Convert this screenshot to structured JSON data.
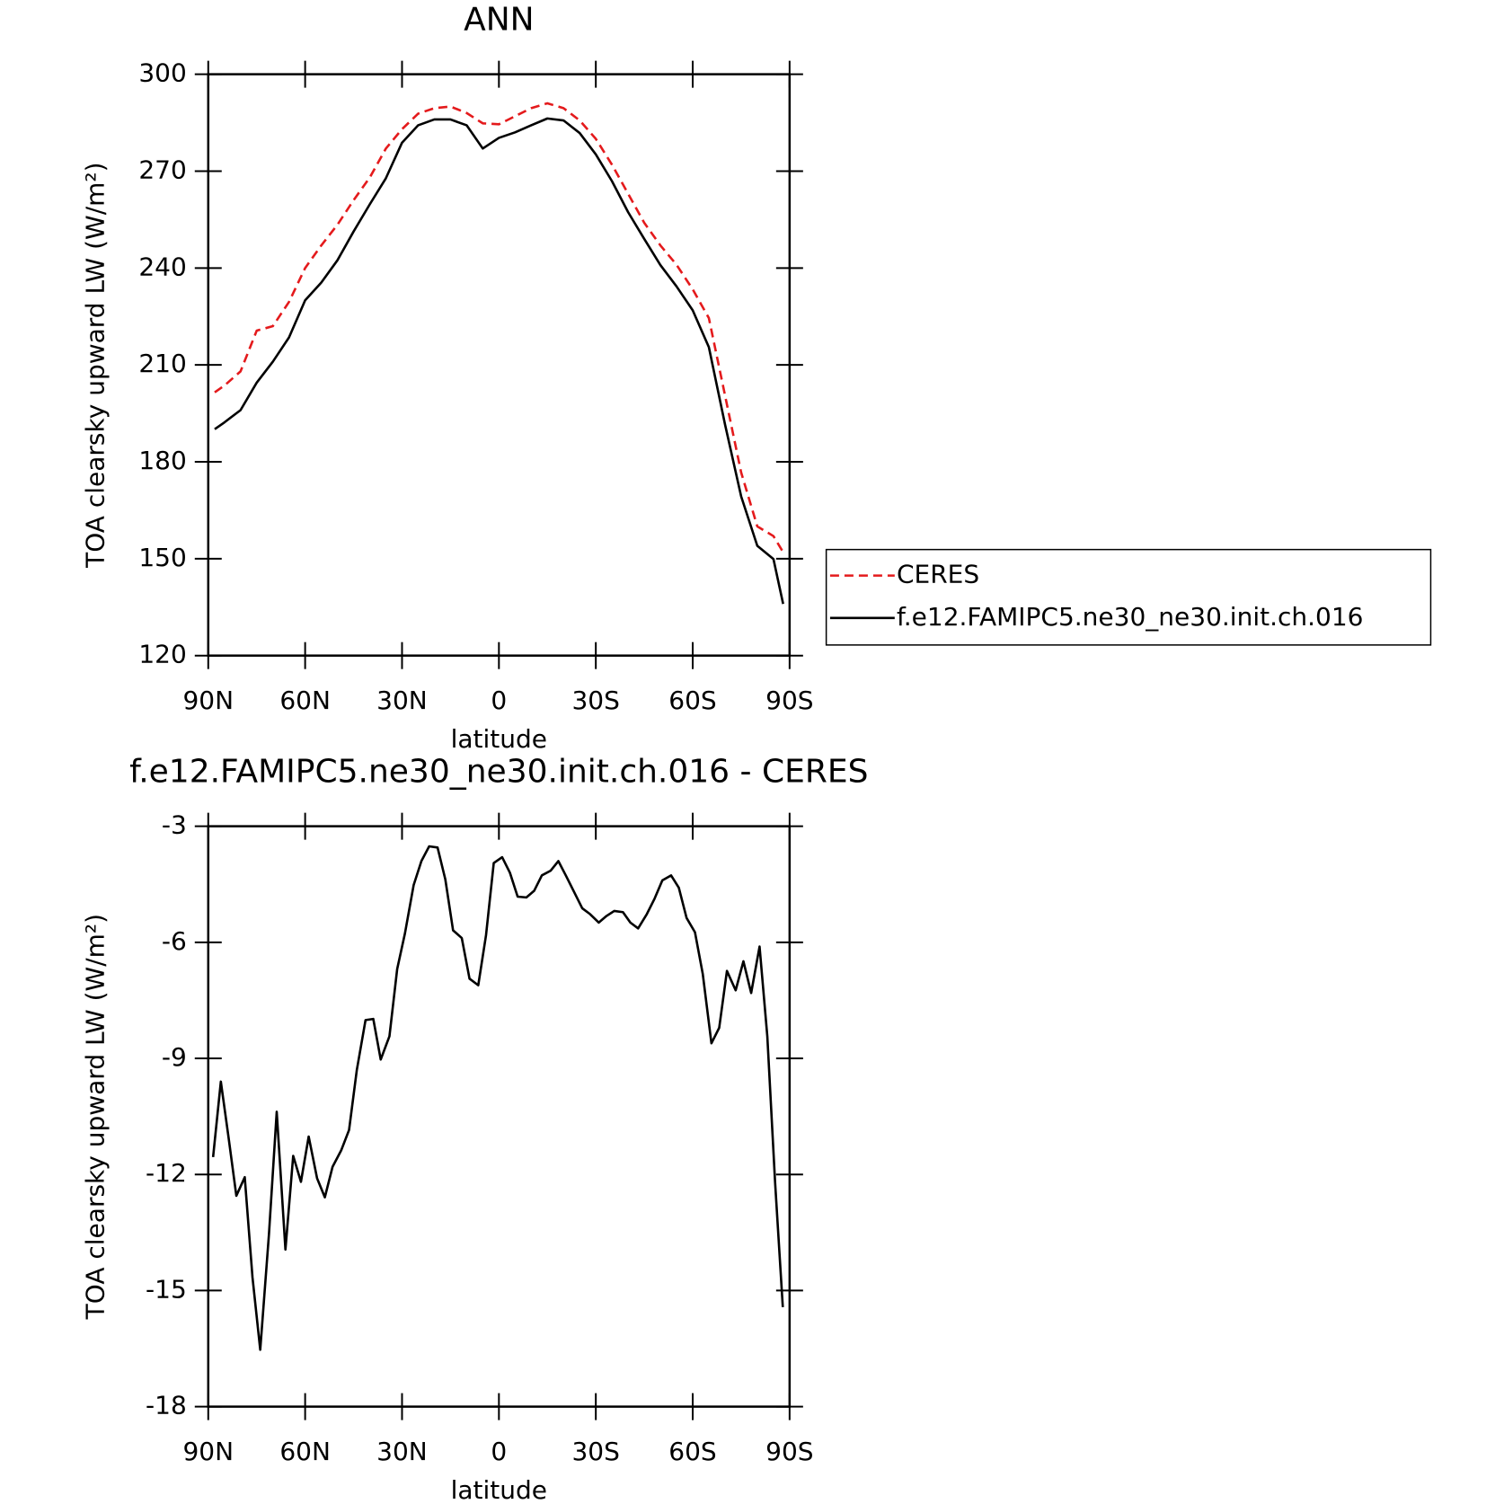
{
  "chart_data": [
    {
      "type": "line",
      "title": "ANN",
      "xlabel": "latitude",
      "ylabel": "TOA clearsky upward LW (W/m²)",
      "x": [
        88,
        85,
        80,
        75,
        70,
        65,
        60,
        55,
        50,
        45,
        40,
        35,
        30,
        25,
        20,
        15,
        10,
        5,
        0,
        -5,
        -10,
        -15,
        -20,
        -25,
        -30,
        -35,
        -40,
        -45,
        -50,
        -55,
        -60,
        -65,
        -70,
        -75,
        -80,
        -85,
        -88
      ],
      "series": [
        {
          "name": "CERES",
          "color": "#e41a1c",
          "style": "dashed",
          "values": [
            201.5,
            203.6,
            208,
            220.6,
            222,
            229.5,
            240,
            247,
            253.4,
            261,
            268,
            277,
            283,
            287.8,
            289.5,
            290,
            288,
            284.8,
            284.5,
            287,
            289.5,
            291,
            289.5,
            285.7,
            280,
            272,
            263,
            254,
            247,
            241,
            233.4,
            224.5,
            200.6,
            176.7,
            160,
            157,
            152
          ]
        },
        {
          "name": "f.e12.FAMIPC5.ne30_ne30.init.ch.016",
          "color": "#000000",
          "style": "solid",
          "values": [
            190.1,
            192.2,
            196,
            204.5,
            211,
            218.5,
            230,
            235.5,
            242.4,
            251.3,
            259.7,
            267.8,
            278.8,
            284.2,
            286,
            286,
            284.2,
            277,
            280.3,
            282,
            284.2,
            286.3,
            285.7,
            281.8,
            275.2,
            266.9,
            257.3,
            249,
            240.9,
            234.3,
            226.9,
            215.5,
            191.6,
            169.3,
            154,
            149.9,
            136
          ]
        }
      ],
      "xlim": [
        90,
        -90
      ],
      "xticks": [
        {
          "value": 90,
          "label": "90N"
        },
        {
          "value": 60,
          "label": "60N"
        },
        {
          "value": 30,
          "label": "30N"
        },
        0,
        {
          "value": -30,
          "label": "30S"
        },
        {
          "value": -60,
          "label": "60S"
        },
        {
          "value": -90,
          "label": "90S"
        }
      ],
      "ylim": [
        120,
        300
      ],
      "yticks": [
        120,
        150,
        180,
        210,
        240,
        270,
        300
      ],
      "legend": "outside right"
    },
    {
      "type": "line",
      "title": "f.e12.FAMIPC5.ne30_ne30.init.ch.016 - CERES",
      "xlabel": "latitude",
      "ylabel": "TOA clearsky upward LW (W/m²)",
      "x": [
        88.5,
        86.1,
        83.7,
        81.3,
        78.7,
        76.3,
        73.9,
        71.2,
        68.8,
        66.1,
        63.7,
        61.3,
        58.9,
        56.3,
        53.9,
        51.5,
        48.8,
        46.4,
        44,
        41.3,
        38.9,
        36.6,
        33.9,
        31.5,
        29.1,
        26.4,
        24,
        21.6,
        19,
        16.6,
        14.2,
        11.5,
        9.1,
        6.4,
        4,
        1.6,
        -1,
        -3.4,
        -5.8,
        -8.5,
        -10.9,
        -13.3,
        -16,
        -18.4,
        -20.7,
        -23.4,
        -25.8,
        -28.2,
        -30.9,
        -33.3,
        -35.7,
        -38.4,
        -40.7,
        -43.1,
        -45.8,
        -48.2,
        -50.6,
        -53.3,
        -55.7,
        -58.1,
        -60.7,
        -63.1,
        -65.8,
        -68.2,
        -70.6,
        -73.3,
        -75.7,
        -78.1,
        -80.7,
        -83.1,
        -85.5,
        -87.9
      ],
      "series": [
        {
          "color": "#000000",
          "style": "solid",
          "values": [
            -11.55,
            -9.6,
            -11.05,
            -12.55,
            -12.07,
            -14.66,
            -16.53,
            -13.54,
            -10.38,
            -13.94,
            -11.52,
            -12.19,
            -11.02,
            -12.1,
            -12.59,
            -11.8,
            -11.37,
            -10.85,
            -9.3,
            -8.01,
            -7.98,
            -9.03,
            -8.43,
            -6.69,
            -5.77,
            -4.52,
            -3.9,
            -3.52,
            -3.55,
            -4.37,
            -5.69,
            -5.89,
            -6.94,
            -7.11,
            -5.82,
            -3.95,
            -3.8,
            -4.2,
            -4.82,
            -4.84,
            -4.67,
            -4.27,
            -4.15,
            -3.9,
            -4.27,
            -4.72,
            -5.12,
            -5.27,
            -5.49,
            -5.32,
            -5.19,
            -5.22,
            -5.49,
            -5.64,
            -5.27,
            -4.87,
            -4.4,
            -4.27,
            -4.59,
            -5.37,
            -5.74,
            -6.81,
            -8.61,
            -8.21,
            -6.74,
            -7.24,
            -6.49,
            -7.31,
            -6.11,
            -8.43,
            -12.19,
            -15.43
          ]
        }
      ],
      "xlim": [
        90,
        -90
      ],
      "xticks": [
        {
          "value": 90,
          "label": "90N"
        },
        {
          "value": 60,
          "label": "60N"
        },
        {
          "value": 30,
          "label": "30N"
        },
        0,
        {
          "value": -30,
          "label": "30S"
        },
        {
          "value": -60,
          "label": "60S"
        },
        {
          "value": -90,
          "label": "90S"
        }
      ],
      "ylim": [
        -18,
        -3
      ],
      "yticks": [
        -18,
        -15,
        -12,
        -9,
        -6,
        -3
      ]
    }
  ]
}
